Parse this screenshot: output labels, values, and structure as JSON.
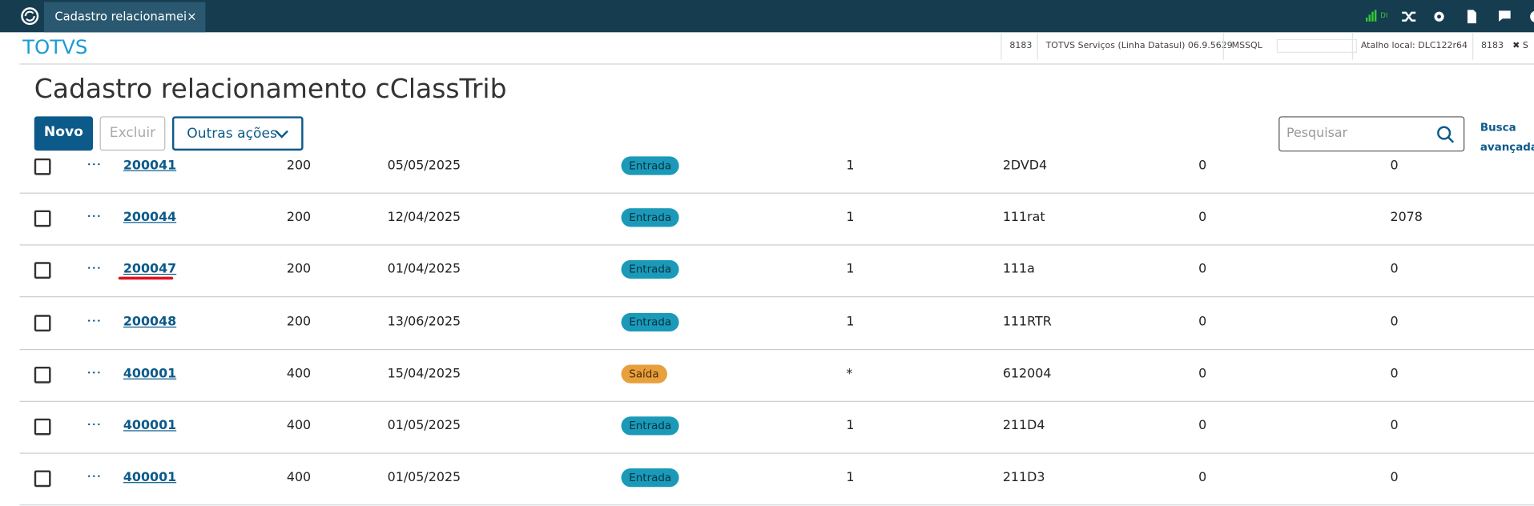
{
  "header": {
    "tab_title": "Cadastro relacionamei",
    "network_label": "DI",
    "brand": "TOTVS",
    "info": [
      "8183",
      "TOTVS Serviços (Linha Datasul) 06.9.5629",
      "MSSQL",
      "Atalho local: DLC122r64",
      "8183",
      "S"
    ]
  },
  "page": {
    "title": "Cadastro relacionamento cClassTrib"
  },
  "toolbar": {
    "new": "Novo",
    "delete": "Excluir",
    "more": "Outras ações",
    "search_placeholder": "Pesquisar",
    "advanced_search": "Busca avançada"
  },
  "table": {
    "rows": [
      [
        "200041",
        "200",
        "05/05/2025",
        "Entrada",
        "1",
        "2DVD4",
        "0",
        "0"
      ],
      [
        "200044",
        "200",
        "12/04/2025",
        "Entrada",
        "1",
        "111rat",
        "0",
        "2078"
      ],
      [
        "200047",
        "200",
        "01/04/2025",
        "Entrada",
        "1",
        "111a",
        "0",
        "0"
      ],
      [
        "200048",
        "200",
        "13/06/2025",
        "Entrada",
        "1",
        "111RTR",
        "0",
        "0"
      ],
      [
        "400001",
        "400",
        "15/04/2025",
        "Saída",
        "*",
        "612004",
        "0",
        "0"
      ],
      [
        "400001",
        "400",
        "01/05/2025",
        "Entrada",
        "1",
        "211D4",
        "0",
        "0"
      ],
      [
        "400001",
        "400",
        "01/05/2025",
        "Entrada",
        "1",
        "211D3",
        "0",
        "0"
      ]
    ]
  }
}
